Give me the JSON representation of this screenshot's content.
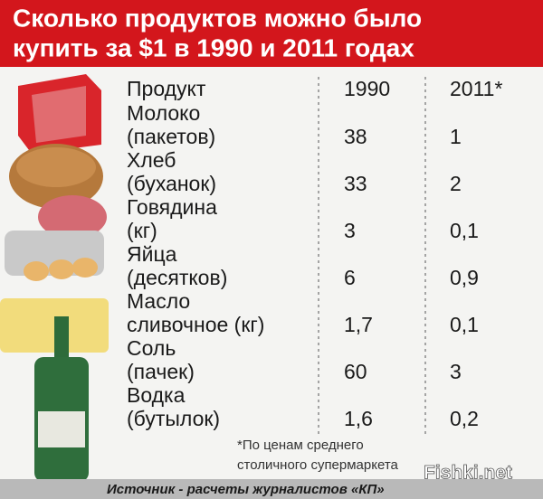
{
  "header": {
    "title": [
      "Сколько продуктов можно было",
      "купить за $1 в 1990 и 2011 годах"
    ]
  },
  "table": {
    "columns": [
      "Продукт",
      "1990",
      "2011*"
    ],
    "rows": [
      {
        "product": [
          "Молоко",
          "(пакетов)"
        ],
        "y1990": "38",
        "y2011": "1"
      },
      {
        "product": [
          "Хлеб",
          "(буханок)"
        ],
        "y1990": "33",
        "y2011": "2"
      },
      {
        "product": [
          "Говядина",
          "(кг)"
        ],
        "y1990": "3",
        "y2011": "0,1"
      },
      {
        "product": [
          "Яйца",
          "(десятков)"
        ],
        "y1990": "6",
        "y2011": "0,9"
      },
      {
        "product": [
          "Масло",
          "сливочное (кг)"
        ],
        "y1990": "1,7",
        "y2011": "0,1"
      },
      {
        "product": [
          "Соль",
          "(пачек)"
        ],
        "y1990": "60",
        "y2011": "3"
      },
      {
        "product": [
          "Водка",
          "(бутылок)"
        ],
        "y1990": "1,6",
        "y2011": "0,2"
      }
    ]
  },
  "footnote": [
    "*По ценам среднего",
    "столичного супермаркета"
  ],
  "source": "Источник - расчеты журналистов «КП»",
  "watermark": "Fishki.net"
}
